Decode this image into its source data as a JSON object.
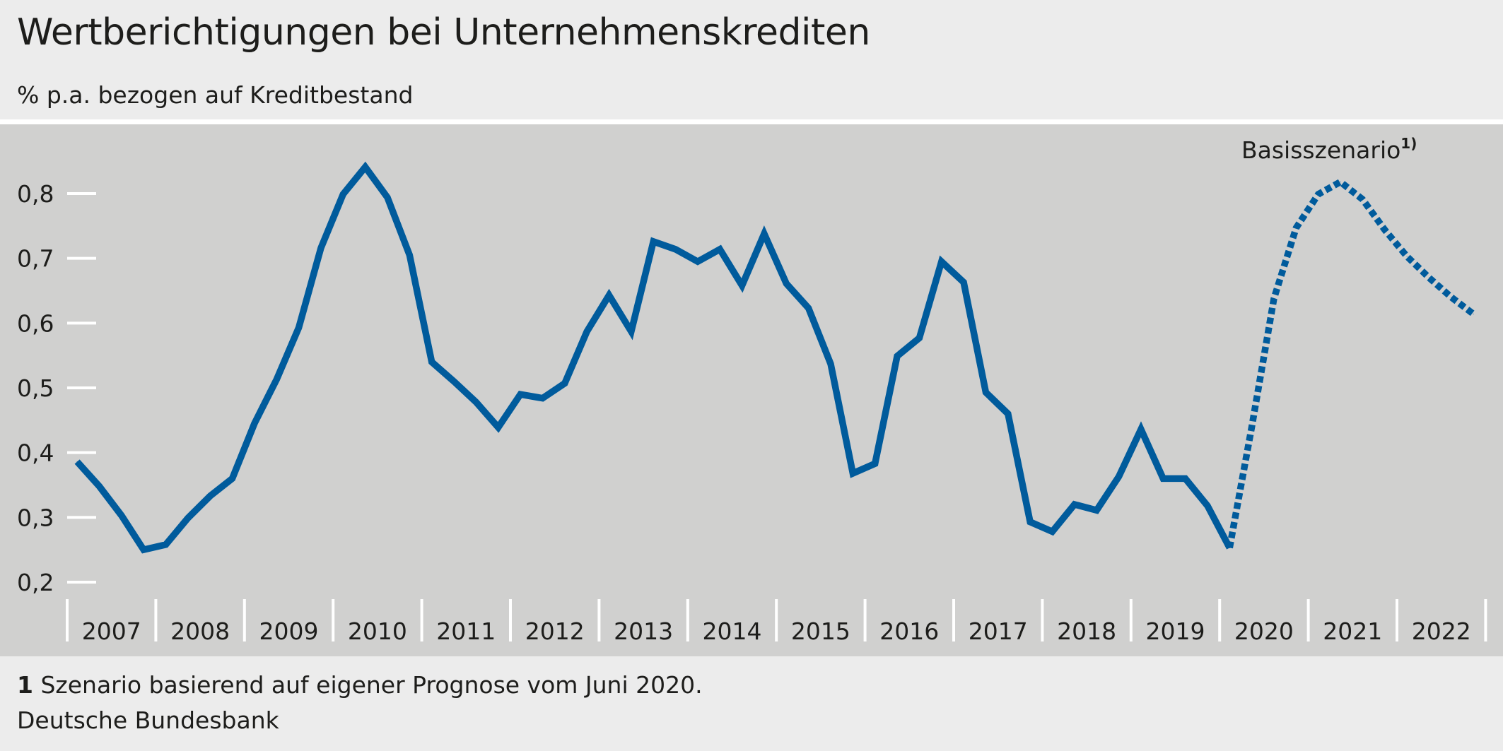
{
  "header": {
    "title": "Wertberichtigungen bei Unternehmenskrediten",
    "subtitle": "% p.a. bezogen auf Kreditbestand"
  },
  "footer": {
    "footnote_number": "1",
    "footnote_text": "Szenario basierend auf eigener Prognose vom Juni 2020.",
    "source": "Deutsche Bundesbank"
  },
  "chart_data": {
    "type": "line",
    "title": "Wertberichtigungen bei Unternehmenskrediten",
    "ylabel": "% p.a. bezogen auf Kreditbestand",
    "ylim": [
      0.2,
      0.85
    ],
    "yticks": [
      0.2,
      0.3,
      0.4,
      0.5,
      0.6,
      0.7,
      0.8
    ],
    "ytick_labels": [
      "0,2",
      "0,3",
      "0,4",
      "0,5",
      "0,6",
      "0,7",
      "0,8"
    ],
    "xtick_labels": [
      "2007",
      "2008",
      "2009",
      "2010",
      "2011",
      "2012",
      "2013",
      "2014",
      "2015",
      "2016",
      "2017",
      "2018",
      "2019",
      "2020",
      "2021",
      "2022"
    ],
    "frequency": "quarterly",
    "grid": false,
    "color": "#005b9c",
    "annotation": "Basisszenario",
    "annotation_sup": "1)",
    "series": [
      {
        "style": "solid",
        "start": "2007Q1",
        "values": [
          0.386,
          0.348,
          0.303,
          0.25,
          0.258,
          0.299,
          0.333,
          0.36,
          0.445,
          0.513,
          0.593,
          0.716,
          0.799,
          0.841,
          0.794,
          0.705,
          0.54,
          0.51,
          0.478,
          0.439,
          0.49,
          0.484,
          0.507,
          0.587,
          0.643,
          0.587,
          0.726,
          0.714,
          0.695,
          0.714,
          0.658,
          0.738,
          0.661,
          0.623,
          0.537,
          0.368,
          0.383,
          0.549,
          0.577,
          0.695,
          0.663,
          0.493,
          0.46,
          0.293,
          0.278,
          0.32,
          0.311,
          0.363,
          0.436,
          0.36,
          0.36,
          0.318,
          0.253
        ]
      },
      {
        "name": "Basisszenario",
        "style": "dotted",
        "start": "2020Q1",
        "values": [
          0.253,
          0.44,
          0.638,
          0.747,
          0.799,
          0.818,
          0.791,
          0.744,
          0.703,
          0.67,
          0.64,
          0.614
        ]
      }
    ]
  }
}
